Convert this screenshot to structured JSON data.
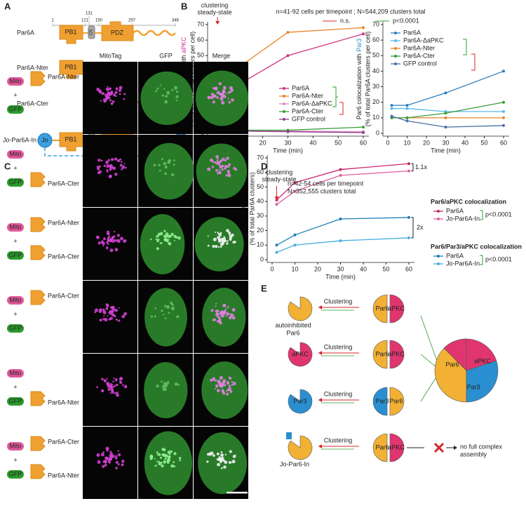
{
  "panel_labels": [
    "A",
    "B",
    "C",
    "D",
    "E"
  ],
  "chart_data": [
    {
      "type": "line",
      "title": "n=41-92 cells per timepoint ; N=544,209 clusters total",
      "annotation": [
        "clustering",
        "steady-state"
      ],
      "annotation_color": "#d62728",
      "significance": [
        {
          "label": "n.s.",
          "color": "#d62728"
        },
        {
          "label": "p<0.0001",
          "color": "#2ca02c"
        }
      ],
      "ylabel": {
        "text": "Par6 colocalization with ",
        "highlight": "aPKC",
        "highlight_color": "#cc2f9a",
        "line2": "(% of total Par6A clusters per cell)"
      },
      "xlabel": "Time (min)",
      "x": [
        2,
        10,
        30,
        60
      ],
      "xlim": [
        0,
        60
      ],
      "xticks": [
        0,
        10,
        20,
        30,
        40,
        50,
        60
      ],
      "ylim": [
        0,
        70
      ],
      "yticks": [
        0,
        10,
        20,
        30,
        40,
        50,
        60,
        70
      ],
      "series": [
        {
          "name": "Par6A",
          "color": "#d1307e",
          "values": [
            30,
            31,
            50,
            64
          ]
        },
        {
          "name": "Par6A-Nter",
          "color": "#e8862a",
          "values": [
            31,
            42,
            65,
            68
          ]
        },
        {
          "name": "Par6A-ΔaPKC",
          "color": "#e58ac8",
          "values": [
            2,
            2,
            1.5,
            1
          ]
        },
        {
          "name": "Par6A-Cter",
          "color": "#3b9b3b",
          "values": [
            2,
            2,
            2,
            4
          ]
        },
        {
          "name": "GFP control",
          "color": "#8c3f8c",
          "values": [
            2,
            1.5,
            1,
            0.5
          ]
        }
      ]
    },
    {
      "type": "line",
      "ylabel": {
        "text": "Par6 colocalization with ",
        "highlight": "Par3",
        "highlight_color": "#2a8fd0",
        "line2": "(% of total Par6A clusters per cell)"
      },
      "xlabel": "Time (min)",
      "x": [
        2,
        10,
        30,
        60
      ],
      "xlim": [
        0,
        60
      ],
      "xticks": [
        0,
        10,
        20,
        30,
        40,
        50,
        60
      ],
      "ylim": [
        0,
        70
      ],
      "yticks": [
        0,
        10,
        20,
        30,
        40,
        50,
        60,
        70
      ],
      "series": [
        {
          "name": "Par6A",
          "color": "#2a7fc1",
          "values": [
            18,
            18,
            26,
            40
          ]
        },
        {
          "name": "Par6A-ΔaPKC",
          "color": "#5bb8e8",
          "values": [
            16,
            16,
            14,
            14
          ]
        },
        {
          "name": "Par6A-Nter",
          "color": "#e8862a",
          "values": [
            10,
            10,
            10,
            10
          ]
        },
        {
          "name": "Par6A-Cter",
          "color": "#3b9b3b",
          "values": [
            10,
            10,
            13,
            20
          ]
        },
        {
          "name": "GFP control",
          "color": "#4a6fa5",
          "values": [
            11,
            8,
            4,
            5
          ]
        }
      ]
    },
    {
      "type": "line",
      "title": [
        "n=42-54  cells per timepoint",
        "N=352,555 clusters total"
      ],
      "annotation": [
        "clustering",
        "steady-state"
      ],
      "annotation_color": "#d62728",
      "ylabel": {
        "text": "Colocalization with marker",
        "line2": "(% of total Par6A clusters)"
      },
      "xlabel": "Time (min)",
      "x": [
        2,
        10,
        30,
        60
      ],
      "xlim": [
        0,
        60
      ],
      "xticks": [
        0,
        10,
        20,
        30,
        40,
        50,
        60
      ],
      "ylim": [
        0,
        70
      ],
      "yticks": [
        0,
        10,
        20,
        30,
        40,
        50,
        60,
        70
      ],
      "fold_labels": [
        "1.1x",
        "2x"
      ],
      "legend_groups": [
        {
          "title": "Par6/aPKC colocalization",
          "color": "#d6338a",
          "note": "p<0.0001"
        },
        {
          "title": "Par6/Par3/aPKC colocalization",
          "color": "#1f8fcf",
          "note": "p<0.0001"
        }
      ],
      "series": [
        {
          "name": "Par6A",
          "color": "#c8286e",
          "values": [
            41,
            53,
            62,
            66
          ]
        },
        {
          "name": "Jo-Par6A-In",
          "color": "#e0609e",
          "values": [
            38,
            47,
            58,
            61
          ]
        },
        {
          "name": "Par6A",
          "color": "#1f7fb5",
          "values": [
            10,
            17,
            28,
            29
          ]
        },
        {
          "name": "Jo-Par6A-In",
          "color": "#46aee0",
          "values": [
            5,
            10,
            13,
            15
          ]
        }
      ]
    }
  ],
  "panel_a": {
    "constructs": [
      "Par6A",
      "Par6A-Nter",
      "Par6A-Cter",
      "Jo-Par6A-In"
    ],
    "residues": [
      1,
      121,
      131,
      150,
      257,
      346
    ],
    "domains": [
      "PB1",
      "CR",
      "PDZ"
    ],
    "tags": [
      "Jo",
      "In"
    ]
  },
  "panel_c": {
    "columns": [
      "MitoTag",
      "GFP",
      "Merge"
    ],
    "rows": [
      {
        "mito": {
          "tag": "Mito",
          "construct": "Par6A-Nter"
        },
        "plus": "+",
        "gfp": {
          "tag": "GFP"
        }
      },
      {
        "mito": {
          "tag": "Mito"
        },
        "plus": "+",
        "gfp": {
          "tag": "GFP",
          "construct": "Par6A-Cter"
        }
      },
      {
        "mito": {
          "tag": "Mito",
          "construct": "Par6A-Nter"
        },
        "plus": "+",
        "gfp": {
          "tag": "GFP",
          "construct": "Par6A-Cter"
        }
      },
      {
        "mito": {
          "tag": "Mito",
          "construct": "Par6A-Cter"
        },
        "plus": "+",
        "gfp": {
          "tag": "GFP"
        }
      },
      {
        "mito": {
          "tag": "Mito"
        },
        "plus": "+",
        "gfp": {
          "tag": "GFP",
          "construct": "Par6A-Nter"
        }
      },
      {
        "mito": {
          "tag": "Mito",
          "construct": "Par6A-Cter"
        },
        "plus": "+",
        "gfp": {
          "tag": "GFP",
          "construct": "Par6A-Nter"
        }
      }
    ]
  },
  "panel_e": {
    "rows": [
      {
        "left": [
          "autoinhibited",
          "Par6"
        ],
        "arrow": "Clustering",
        "middle": [
          "Par6",
          "aPKC"
        ]
      },
      {
        "left": [
          "aPKC"
        ],
        "arrow": "Clustering",
        "middle": [
          "Par6",
          "aPKC"
        ]
      },
      {
        "left": [
          "Par3"
        ],
        "arrow": "Clustering",
        "middle": [
          "Par3",
          "Par6"
        ]
      },
      {
        "left": [
          "Jo-Par6-In"
        ],
        "arrow": "Clustering",
        "middle": [
          "Par6",
          "aPKC"
        ],
        "result": [
          "no full complex",
          "assembly"
        ]
      }
    ],
    "complex": [
      "Par6",
      "aPKC",
      "Par3"
    ]
  }
}
